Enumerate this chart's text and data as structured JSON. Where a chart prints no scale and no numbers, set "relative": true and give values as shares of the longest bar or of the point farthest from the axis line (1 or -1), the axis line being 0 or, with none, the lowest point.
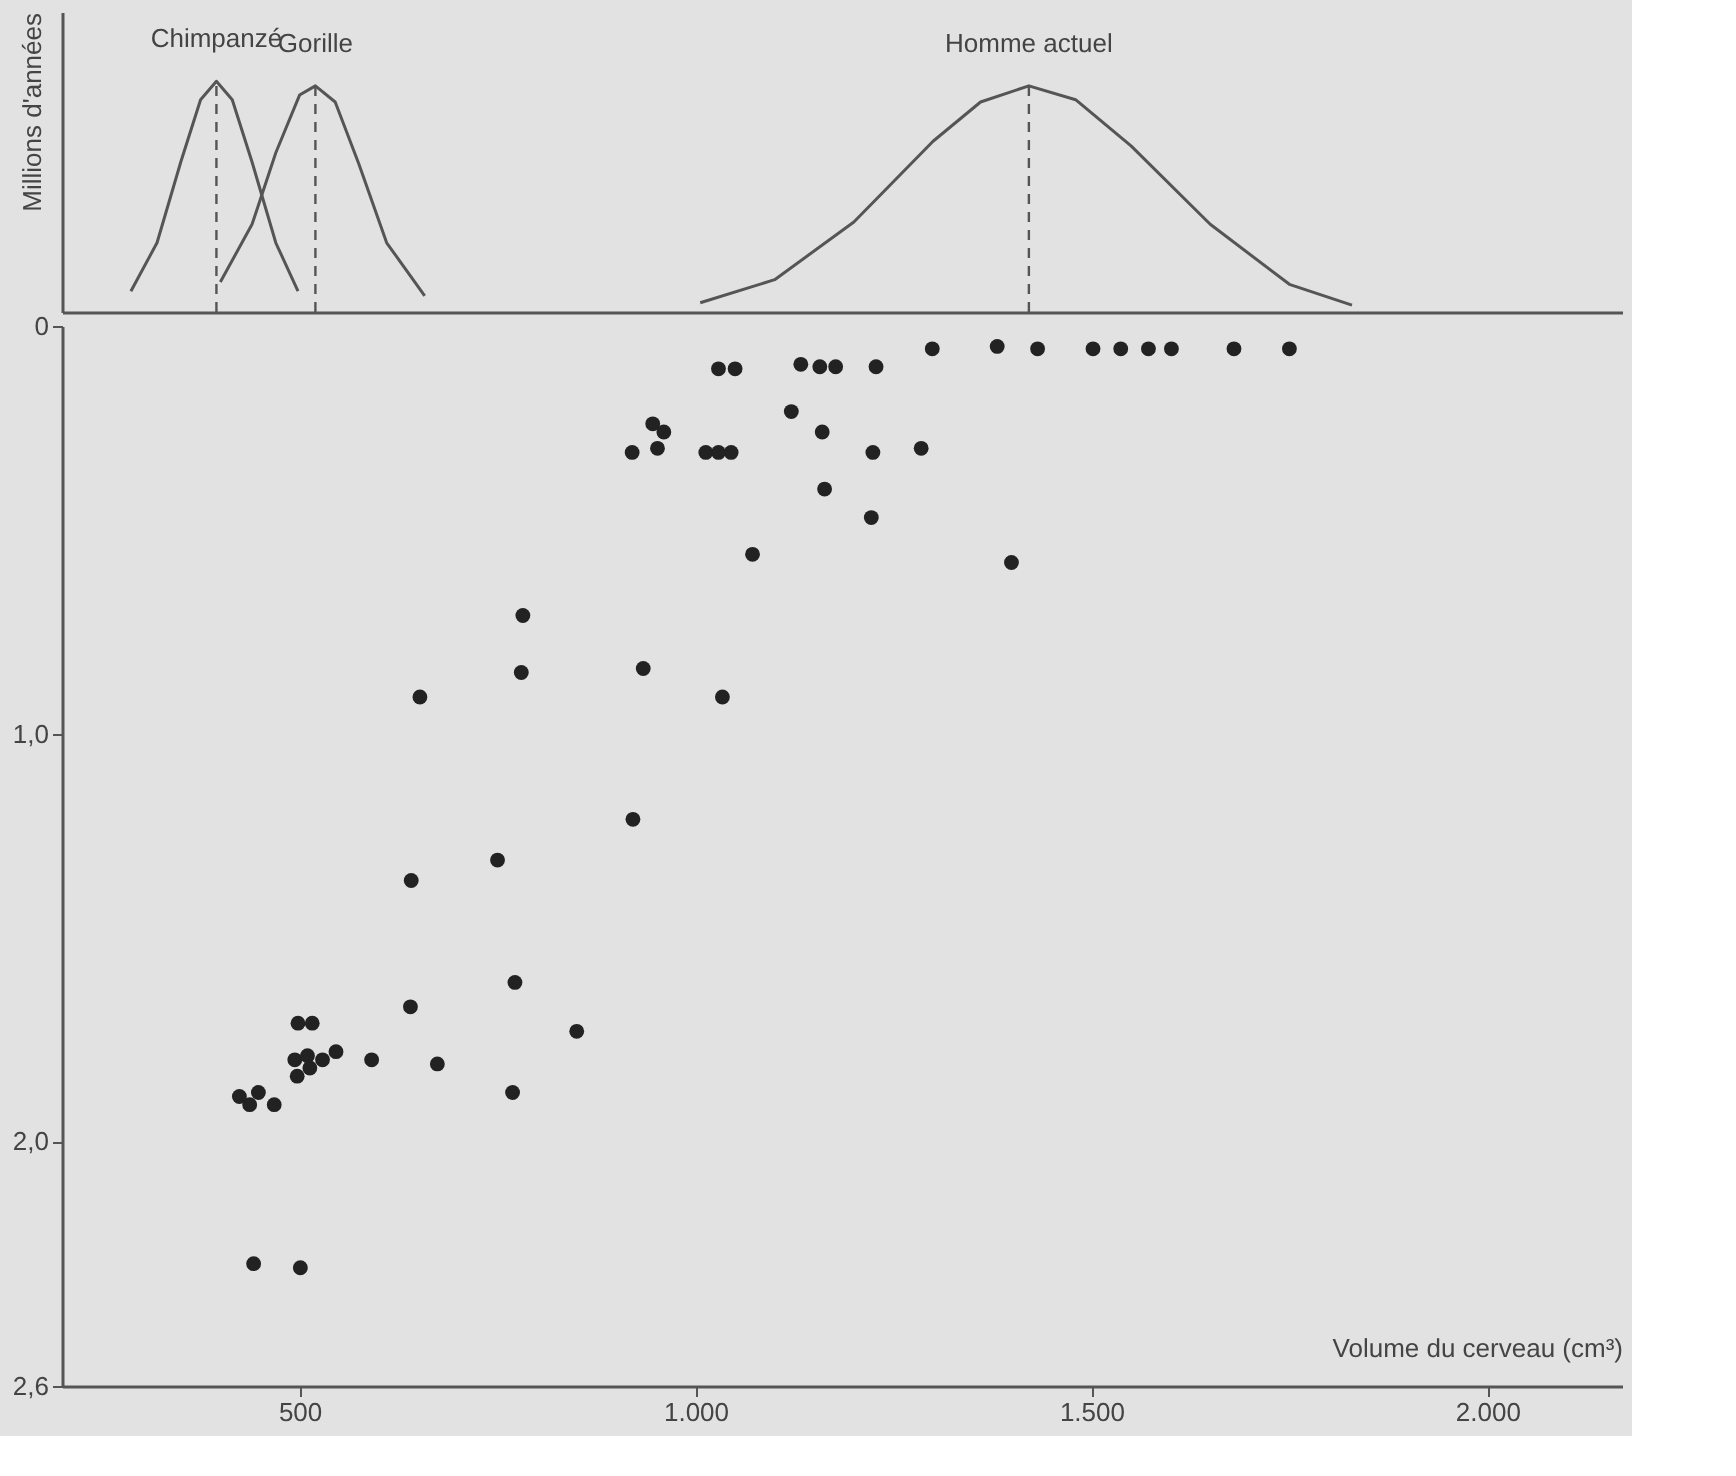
{
  "chart_data": [
    {
      "type": "line",
      "relative": true,
      "ylabel": "Millions d'années",
      "xlim": [
        200,
        2170
      ],
      "tick_labels": false,
      "marker": "none",
      "line_style": "solid",
      "series": [
        {
          "name": "Chimpanzé",
          "color": "#555555",
          "x": [
            287,
            320,
            350,
            375,
            395,
            415,
            440,
            470,
            498
          ],
          "values": [
            0.09,
            0.3,
            0.65,
            0.92,
            1,
            0.92,
            0.65,
            0.3,
            0.09
          ]
        },
        {
          "name": "Gorille",
          "color": "#555555",
          "x": [
            400,
            440,
            470,
            500,
            520,
            545,
            575,
            610,
            658
          ],
          "values": [
            0.13,
            0.38,
            0.69,
            0.94,
            0.98,
            0.91,
            0.64,
            0.3,
            0.07
          ]
        },
        {
          "name": "Homme actuel",
          "color": "#555555",
          "x": [
            1006,
            1100,
            1200,
            1300,
            1360,
            1421,
            1480,
            1550,
            1650,
            1750,
            1829
          ],
          "values": [
            0.04,
            0.14,
            0.39,
            0.74,
            0.91,
            0.98,
            0.92,
            0.72,
            0.38,
            0.12,
            0.03
          ]
        }
      ],
      "ref_lines": [
        {
          "axis": "x",
          "value": 395,
          "label": null,
          "color": "#555555",
          "line_style": "dashed"
        },
        {
          "axis": "x",
          "value": 520,
          "label": null,
          "color": "#555555",
          "line_style": "dashed"
        },
        {
          "axis": "x",
          "value": 1421,
          "label": null,
          "color": "#555555",
          "line_style": "dashed"
        }
      ]
    },
    {
      "type": "scatter",
      "xlabel": "Volume du cerveau (cm³)",
      "xlim": [
        200,
        2170
      ],
      "ylim": [
        2.6,
        0
      ],
      "marker": "circle",
      "xticks": [
        500,
        {
          "value": 1000,
          "label": "1.000"
        },
        {
          "value": 1500,
          "label": "1.500"
        },
        {
          "value": 2000,
          "label": "2.000"
        }
      ],
      "yticks": [
        {
          "value": 0,
          "label": "0"
        },
        {
          "value": 1.0,
          "label": "1,0"
        },
        {
          "value": 2.0,
          "label": "2,0"
        },
        {
          "value": 2.6,
          "label": "2,6"
        }
      ],
      "series": [
        {
          "color": "#222222",
          "x": [
            1299,
            1029,
            1050,
            1133,
            1157,
            1177,
            1228,
            1121,
            1160,
            1224,
            1285,
            920,
            946,
            960,
            952,
            1013,
            1029,
            1045,
            1163,
            1222,
            1072,
            782,
            780,
            934,
            652,
            1034,
            921,
            750,
            641,
            1381,
            1432,
            1502,
            1537,
            1572,
            1601,
            1680,
            1750,
            1399,
            772,
            640,
            850,
            498,
            516,
            494,
            510,
            529,
            546,
            497,
            513,
            591,
            674,
            769,
            424,
            448,
            437,
            468,
            442,
            501
          ],
          "values": [
            0.056,
            0.105,
            0.105,
            0.094,
            0.1,
            0.1,
            0.1,
            0.21,
            0.26,
            0.31,
            0.3,
            0.31,
            0.24,
            0.26,
            0.3,
            0.31,
            0.31,
            0.31,
            0.4,
            0.47,
            0.56,
            0.71,
            0.85,
            0.84,
            0.91,
            0.91,
            1.21,
            1.31,
            1.36,
            0.05,
            0.056,
            0.056,
            0.056,
            0.056,
            0.056,
            0.056,
            0.056,
            0.58,
            1.61,
            1.67,
            1.73,
            1.71,
            1.71,
            1.8,
            1.79,
            1.8,
            1.78,
            1.84,
            1.82,
            1.8,
            1.81,
            1.88,
            1.89,
            1.88,
            1.91,
            1.91,
            2.3,
            2.31
          ]
        }
      ]
    }
  ]
}
